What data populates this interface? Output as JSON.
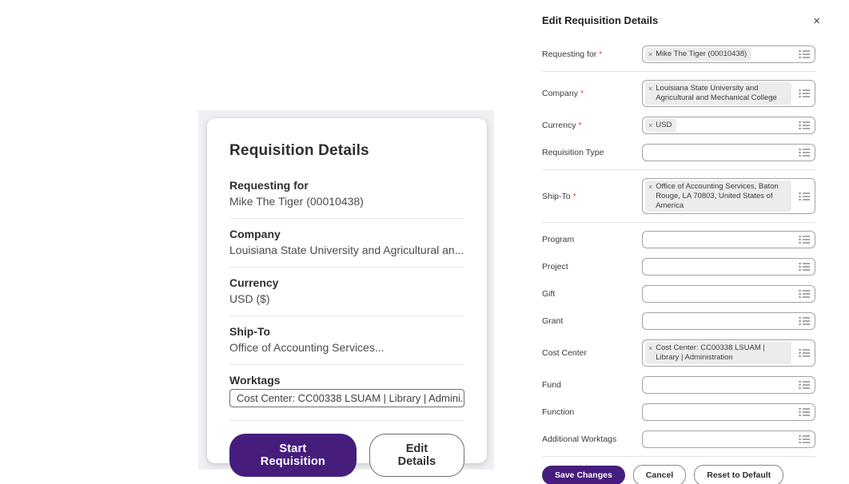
{
  "colors": {
    "primary_purple": "#461d7c",
    "required_red": "#e14b35",
    "backdrop_gray": "#eff0f3",
    "tag_gray": "#ececec"
  },
  "summary_card": {
    "title": "Requisition Details",
    "sections": [
      {
        "label": "Requesting for",
        "value": "Mike The Tiger (00010438)",
        "style": "text"
      },
      {
        "label": "Company",
        "value": "Louisiana State University and Agricultural an...",
        "style": "text"
      },
      {
        "label": "Currency",
        "value": "USD ($)",
        "style": "text"
      },
      {
        "label": "Ship-To",
        "value": "Office of Accounting Services...",
        "style": "text"
      },
      {
        "label": "Worktags",
        "value": "Cost Center: CC00338 LSUAM | Library | Admini...",
        "style": "tag"
      }
    ],
    "buttons": {
      "start": "Start Requisition",
      "edit": "Edit Details"
    }
  },
  "edit_panel": {
    "title": "Edit Requisition Details",
    "close_icon": "×",
    "remove_tag_icon": "×",
    "fields": [
      {
        "label": "Requesting for",
        "required": true,
        "tag": "Mike The Tiger (00010438)",
        "divider_after": true
      },
      {
        "label": "Company",
        "required": true,
        "tag": "Louisiana State University and Agricultural and Mechanical College",
        "divider_after": false
      },
      {
        "label": "Currency",
        "required": true,
        "tag": "USD",
        "divider_after": false
      },
      {
        "label": "Requisition Type",
        "required": false,
        "tag": null,
        "divider_after": true
      },
      {
        "label": "Ship-To",
        "required": true,
        "tag": "Office of Accounting Services, Baton Rouge, LA 70803, United States of America",
        "divider_after": true
      },
      {
        "label": "Program",
        "required": false,
        "tag": null,
        "divider_after": false
      },
      {
        "label": "Project",
        "required": false,
        "tag": null,
        "divider_after": false
      },
      {
        "label": "Gift",
        "required": false,
        "tag": null,
        "divider_after": false
      },
      {
        "label": "Grant",
        "required": false,
        "tag": null,
        "divider_after": false
      },
      {
        "label": "Cost Center",
        "required": false,
        "tag": "Cost Center: CC00338 LSUAM | Library | Administration",
        "divider_after": false
      },
      {
        "label": "Fund",
        "required": false,
        "tag": null,
        "divider_after": false
      },
      {
        "label": "Function",
        "required": false,
        "tag": null,
        "divider_after": false
      },
      {
        "label": "Additional Worktags",
        "required": false,
        "tag": null,
        "divider_after": true
      }
    ],
    "buttons": {
      "save": "Save Changes",
      "cancel": "Cancel",
      "reset": "Reset to Default"
    }
  }
}
